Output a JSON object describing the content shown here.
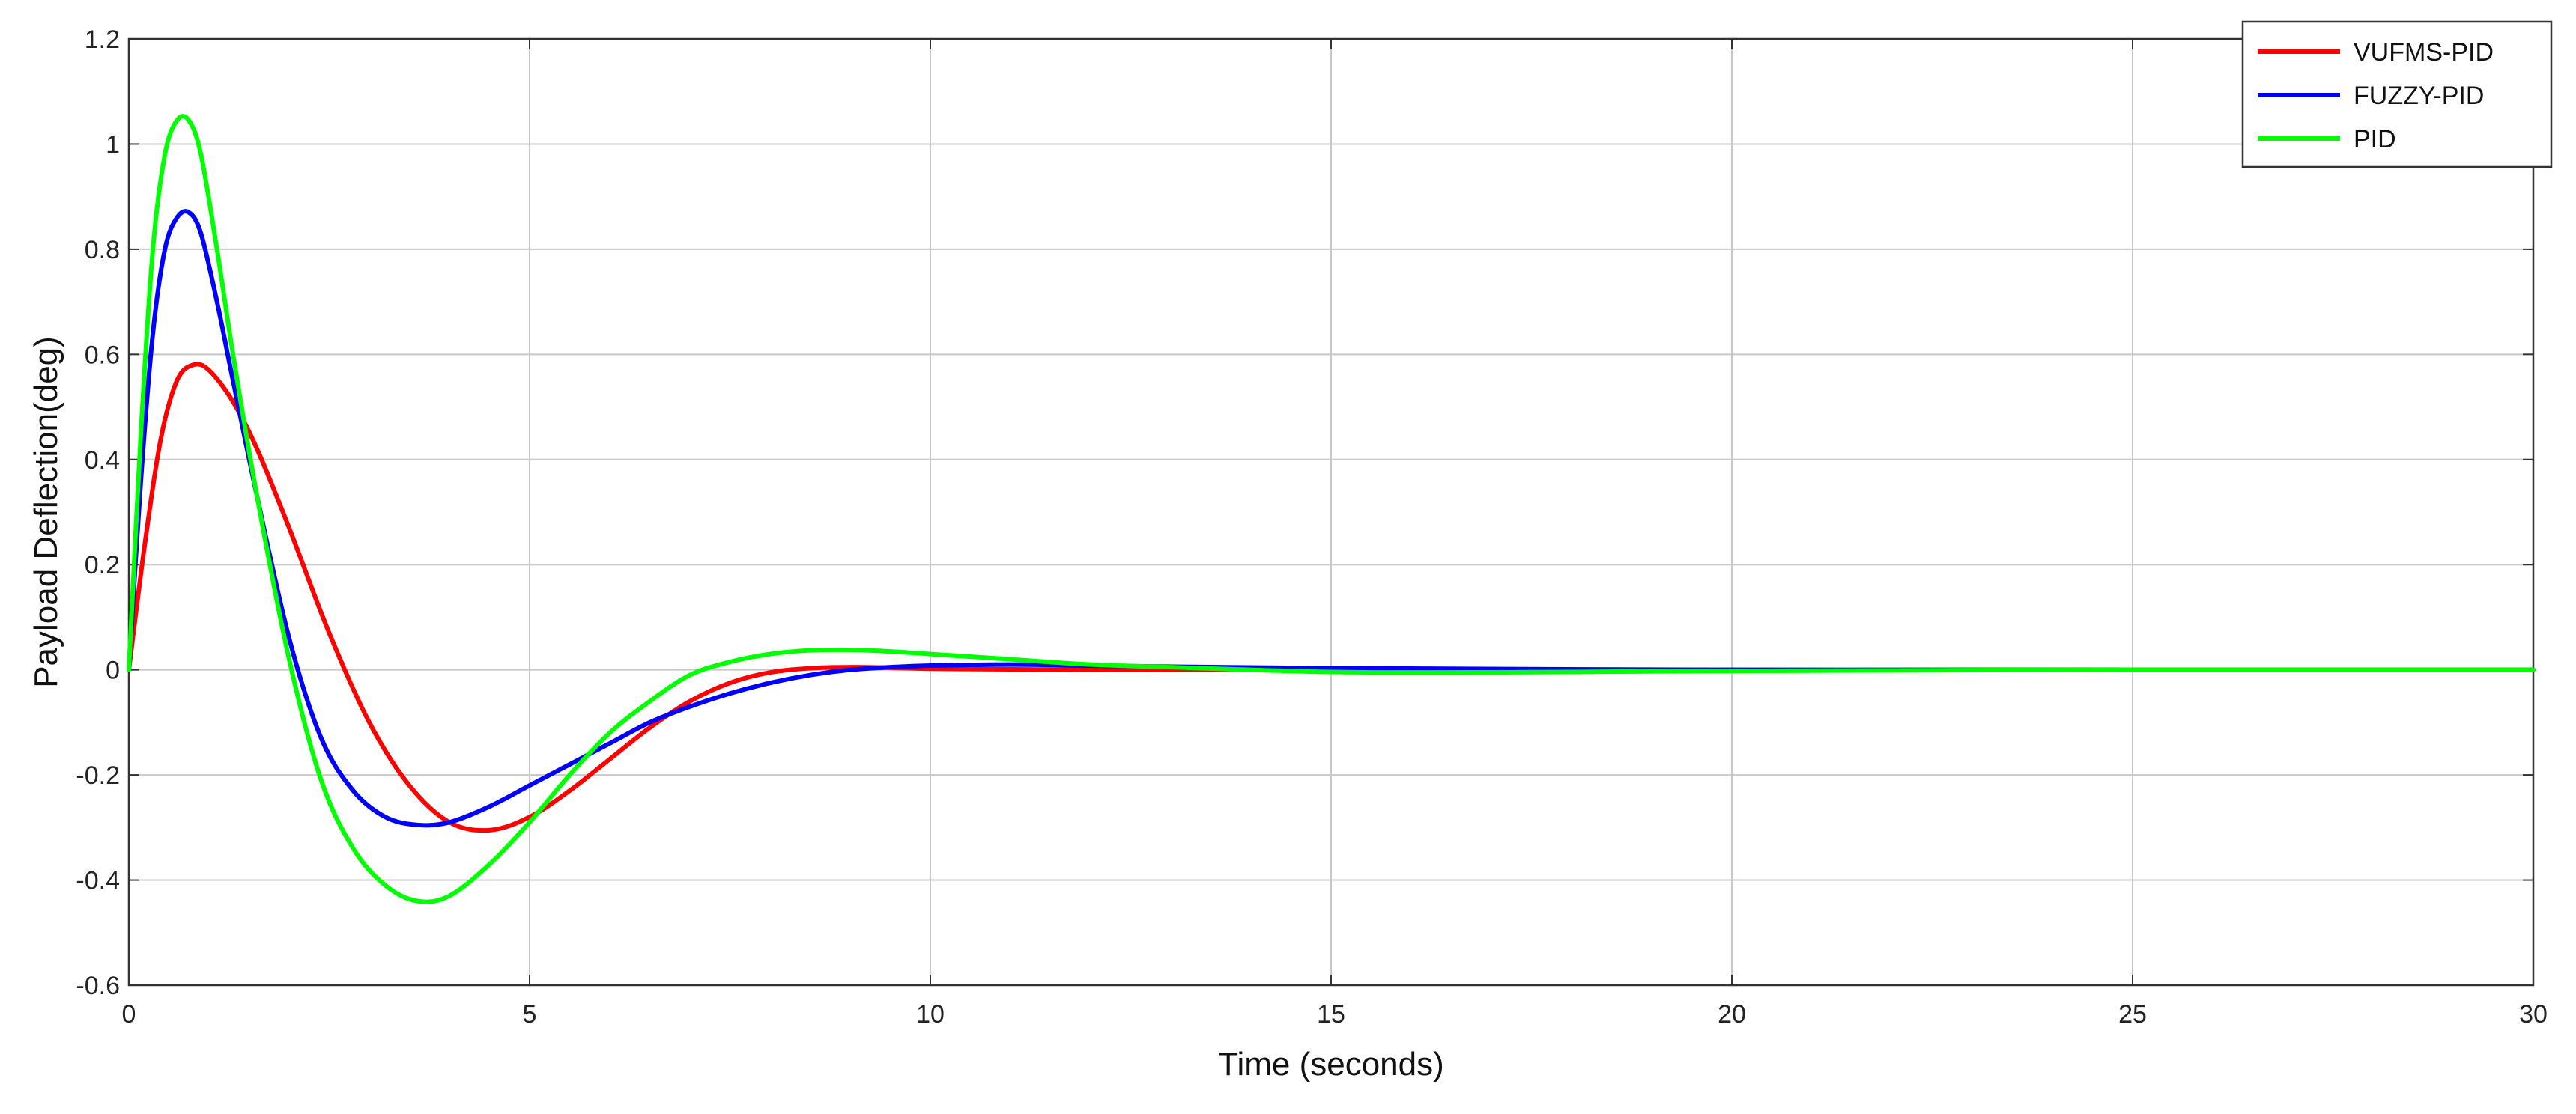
{
  "chart_data": {
    "type": "line",
    "title": "",
    "xlabel": "Time (seconds)",
    "ylabel": "Payload Deflection(deg)",
    "xlim": [
      0,
      30
    ],
    "ylim": [
      -0.6,
      1.2
    ],
    "xticks": [
      0,
      5,
      10,
      15,
      20,
      25,
      30
    ],
    "xtick_labels": [
      "0",
      "5",
      "10",
      "15",
      "20",
      "25",
      "30"
    ],
    "yticks": [
      -0.6,
      -0.4,
      -0.2,
      0,
      0.2,
      0.4,
      0.6,
      0.8,
      1,
      1.2
    ],
    "ytick_labels": [
      "-0.6",
      "-0.4",
      "-0.2",
      "0",
      "0.2",
      "0.4",
      "0.6",
      "0.8",
      "1",
      "1.2"
    ],
    "grid": true,
    "legend": "top-right",
    "series": [
      {
        "name": "VUFMS-PID",
        "color": "#ff0000",
        "x": [
          0,
          0.2,
          0.4,
          0.6,
          0.8,
          1.0,
          1.3,
          1.6,
          2.0,
          2.5,
          3.0,
          3.5,
          4.0,
          4.5,
          5.0,
          5.5,
          6.0,
          6.5,
          7.0,
          7.5,
          8.0,
          8.5,
          9.0,
          9.5,
          10,
          11,
          12,
          13,
          15,
          20,
          25,
          30
        ],
        "y": [
          0,
          0.24,
          0.44,
          0.55,
          0.58,
          0.57,
          0.51,
          0.42,
          0.27,
          0.07,
          -0.1,
          -0.22,
          -0.29,
          -0.305,
          -0.28,
          -0.23,
          -0.17,
          -0.11,
          -0.06,
          -0.025,
          -0.005,
          0.003,
          0.005,
          0.004,
          0.002,
          0.001,
          0.0,
          0.0,
          0.0,
          0.0,
          0.0,
          0.0
        ]
      },
      {
        "name": "FUZZY-PID",
        "color": "#0000ff",
        "x": [
          0,
          0.15,
          0.3,
          0.45,
          0.6,
          0.75,
          0.9,
          1.1,
          1.3,
          1.6,
          2.0,
          2.4,
          2.8,
          3.2,
          3.6,
          4.0,
          4.5,
          5.0,
          5.5,
          6.0,
          6.5,
          7.0,
          7.5,
          8.0,
          8.5,
          9.0,
          9.5,
          10,
          11,
          12,
          13,
          15,
          20,
          25,
          30
        ],
        "y": [
          0,
          0.36,
          0.64,
          0.8,
          0.86,
          0.87,
          0.83,
          0.7,
          0.55,
          0.33,
          0.06,
          -0.13,
          -0.23,
          -0.28,
          -0.295,
          -0.29,
          -0.26,
          -0.22,
          -0.18,
          -0.14,
          -0.1,
          -0.07,
          -0.045,
          -0.025,
          -0.01,
          0.0,
          0.005,
          0.008,
          0.01,
          0.008,
          0.006,
          0.003,
          0.0,
          0.0,
          0.0
        ]
      },
      {
        "name": "PID",
        "color": "#00ff00",
        "x": [
          0,
          0.15,
          0.3,
          0.45,
          0.6,
          0.75,
          0.9,
          1.1,
          1.3,
          1.6,
          2.0,
          2.4,
          2.8,
          3.2,
          3.6,
          4.0,
          4.5,
          5.0,
          5.5,
          6.0,
          6.5,
          7.0,
          7.5,
          8.0,
          8.5,
          9.0,
          9.5,
          10,
          11,
          12,
          13,
          14,
          15,
          16,
          18,
          20,
          25,
          30
        ],
        "y": [
          0,
          0.45,
          0.8,
          0.98,
          1.045,
          1.045,
          0.98,
          0.8,
          0.6,
          0.33,
          0.02,
          -0.21,
          -0.34,
          -0.41,
          -0.44,
          -0.43,
          -0.37,
          -0.29,
          -0.2,
          -0.12,
          -0.06,
          -0.01,
          0.015,
          0.03,
          0.037,
          0.038,
          0.035,
          0.03,
          0.02,
          0.01,
          0.005,
          0.0,
          -0.004,
          -0.005,
          -0.004,
          -0.002,
          0.0,
          0.0
        ]
      }
    ]
  }
}
